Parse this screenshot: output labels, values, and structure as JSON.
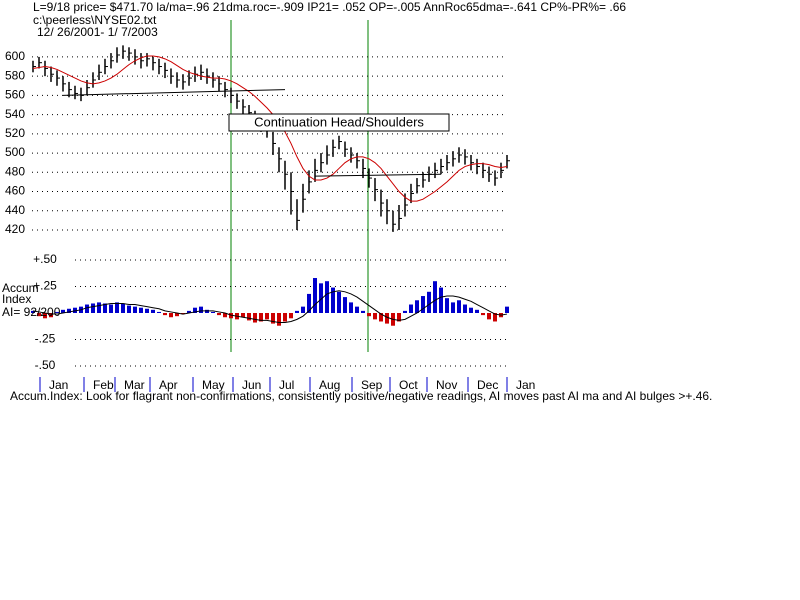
{
  "chart_data": {
    "type": "ohlc",
    "header": "L=9/18  price= $471.70  la/ma=.96 21dma.roc=-.909 IP21= .052 OP=-.005 AnnRoc65dma=-.641 CP%-PR%=  .66",
    "file": "c:\\peerless\\NYSE02.txt",
    "date_range": "12/ 26/2001- 1/ 7/2003",
    "annotation": "Continuation Head/Shoulders",
    "ai_label_1": "Accum",
    "ai_label_2": "Index",
    "ai_label_3": "AI= 92/200",
    "footer": "Accum.Index: Look for flagrant non-confirmations, consistently positive/negative readings, AI moves past AI ma and AI bulges >+.46.",
    "months": [
      "Jan",
      "Feb",
      "Mar",
      "Apr",
      "May",
      "Jun",
      "Jul",
      "Aug",
      "Sep",
      "Oct",
      "Nov",
      "Dec",
      "Jan"
    ],
    "ylim": [
      410,
      610
    ],
    "yticks": [
      420,
      440,
      460,
      480,
      500,
      520,
      540,
      560,
      580,
      600
    ],
    "y2lim": [
      -0.5,
      0.5
    ],
    "y2ticks": [
      {
        "value": 0.5,
        "label": "+.50"
      },
      {
        "value": 0.25,
        "label": "+.25"
      },
      {
        "value": -0.25,
        "label": "-.25"
      },
      {
        "value": -0.5,
        "label": "-.50"
      }
    ],
    "grid": true,
    "high": [
      596,
      600,
      596,
      590,
      586,
      580,
      574,
      570,
      568,
      576,
      584,
      592,
      598,
      604,
      610,
      612,
      610,
      608,
      604,
      604,
      600,
      598,
      594,
      588,
      584,
      582,
      586,
      590,
      592,
      588,
      584,
      580,
      574,
      568,
      562,
      556,
      550,
      544,
      538,
      532,
      522,
      506,
      492,
      480,
      452,
      468,
      482,
      494,
      500,
      508,
      514,
      518,
      512,
      506,
      500,
      494,
      484,
      474,
      462,
      452,
      440,
      446,
      458,
      468,
      474,
      480,
      486,
      490,
      494,
      498,
      502,
      506,
      504,
      498,
      494,
      490,
      486,
      482,
      490,
      498
    ],
    "low": [
      584,
      588,
      580,
      574,
      570,
      564,
      558,
      556,
      554,
      560,
      568,
      576,
      582,
      588,
      594,
      598,
      596,
      592,
      588,
      590,
      586,
      582,
      578,
      572,
      568,
      566,
      570,
      574,
      576,
      572,
      568,
      564,
      558,
      552,
      546,
      540,
      534,
      528,
      522,
      516,
      498,
      480,
      462,
      436,
      420,
      438,
      458,
      470,
      480,
      488,
      496,
      504,
      496,
      490,
      484,
      474,
      464,
      450,
      434,
      426,
      418,
      420,
      434,
      448,
      458,
      464,
      470,
      474,
      478,
      482,
      486,
      490,
      488,
      482,
      478,
      474,
      470,
      466,
      474,
      484
    ],
    "close": [
      590,
      594,
      588,
      582,
      578,
      572,
      566,
      562,
      560,
      568,
      576,
      584,
      590,
      596,
      602,
      606,
      604,
      600,
      596,
      598,
      594,
      590,
      586,
      580,
      576,
      574,
      578,
      582,
      584,
      580,
      576,
      572,
      566,
      560,
      554,
      548,
      542,
      536,
      530,
      524,
      510,
      494,
      478,
      460,
      430,
      452,
      470,
      482,
      490,
      498,
      506,
      512,
      504,
      498,
      492,
      484,
      474,
      462,
      448,
      440,
      426,
      432,
      446,
      458,
      466,
      472,
      478,
      482,
      486,
      490,
      494,
      498,
      496,
      490,
      486,
      482,
      478,
      474,
      482,
      492
    ],
    "ma": {
      "color": "#cc0000",
      "values": [
        588,
        589,
        590,
        589,
        587,
        584,
        581,
        578,
        575,
        573,
        572,
        573,
        575,
        578,
        582,
        587,
        592,
        596,
        599,
        601,
        601,
        600,
        598,
        595,
        591,
        587,
        584,
        582,
        580,
        579,
        578,
        578,
        577,
        575,
        572,
        568,
        564,
        559,
        553,
        547,
        540,
        532,
        522,
        510,
        496,
        484,
        476,
        472,
        472,
        474,
        478,
        484,
        490,
        494,
        496,
        496,
        494,
        490,
        484,
        476,
        468,
        460,
        454,
        450,
        450,
        452,
        456,
        460,
        465,
        470,
        476,
        482,
        486,
        488,
        489,
        489,
        488,
        486,
        485,
        486
      ]
    },
    "necklines": [
      {
        "x": [
          5,
          42
        ],
        "values": [
          560,
          566
        ]
      },
      {
        "x": [
          47,
          68
        ],
        "values": [
          476,
          478
        ]
      }
    ],
    "ai": {
      "pos_color": "#0000cc",
      "neg_color": "#cc0000",
      "values": [
        0.02,
        -0.03,
        -0.05,
        -0.04,
        0.01,
        0.03,
        0.04,
        0.05,
        0.06,
        0.08,
        0.09,
        0.1,
        0.09,
        0.08,
        0.1,
        0.09,
        0.07,
        0.06,
        0.05,
        0.04,
        0.03,
        0.01,
        -0.02,
        -0.04,
        -0.03,
        -0.01,
        0.02,
        0.05,
        0.06,
        0.03,
        0.01,
        -0.02,
        -0.04,
        -0.05,
        -0.06,
        -0.04,
        -0.07,
        -0.09,
        -0.08,
        -0.06,
        -0.1,
        -0.12,
        -0.08,
        -0.05,
        0.02,
        0.06,
        0.18,
        0.33,
        0.28,
        0.3,
        0.24,
        0.2,
        0.15,
        0.1,
        0.06,
        0.02,
        -0.03,
        -0.06,
        -0.08,
        -0.1,
        -0.12,
        -0.08,
        0.02,
        0.08,
        0.12,
        0.16,
        0.2,
        0.3,
        0.24,
        0.14,
        0.1,
        0.12,
        0.08,
        0.05,
        0.03,
        -0.02,
        -0.06,
        -0.08,
        -0.04,
        0.06
      ]
    },
    "ai_ma": {
      "color": "#000000",
      "values": [
        0.02,
        0.01,
        0.0,
        -0.01,
        -0.01,
        0.0,
        0.01,
        0.02,
        0.03,
        0.05,
        0.06,
        0.07,
        0.08,
        0.09,
        0.09,
        0.09,
        0.08,
        0.08,
        0.07,
        0.06,
        0.05,
        0.04,
        0.02,
        0.01,
        0.0,
        -0.01,
        0.0,
        0.01,
        0.02,
        0.02,
        0.02,
        0.01,
        0.0,
        -0.02,
        -0.03,
        -0.04,
        -0.05,
        -0.06,
        -0.07,
        -0.07,
        -0.08,
        -0.09,
        -0.09,
        -0.08,
        -0.06,
        -0.03,
        0.02,
        0.08,
        0.13,
        0.18,
        0.2,
        0.21,
        0.2,
        0.18,
        0.15,
        0.11,
        0.07,
        0.03,
        -0.01,
        -0.04,
        -0.06,
        -0.07,
        -0.06,
        -0.03,
        0.0,
        0.04,
        0.08,
        0.12,
        0.15,
        0.16,
        0.16,
        0.15,
        0.13,
        0.11,
        0.08,
        0.05,
        0.02,
        -0.01,
        -0.02,
        -0.01
      ]
    }
  }
}
